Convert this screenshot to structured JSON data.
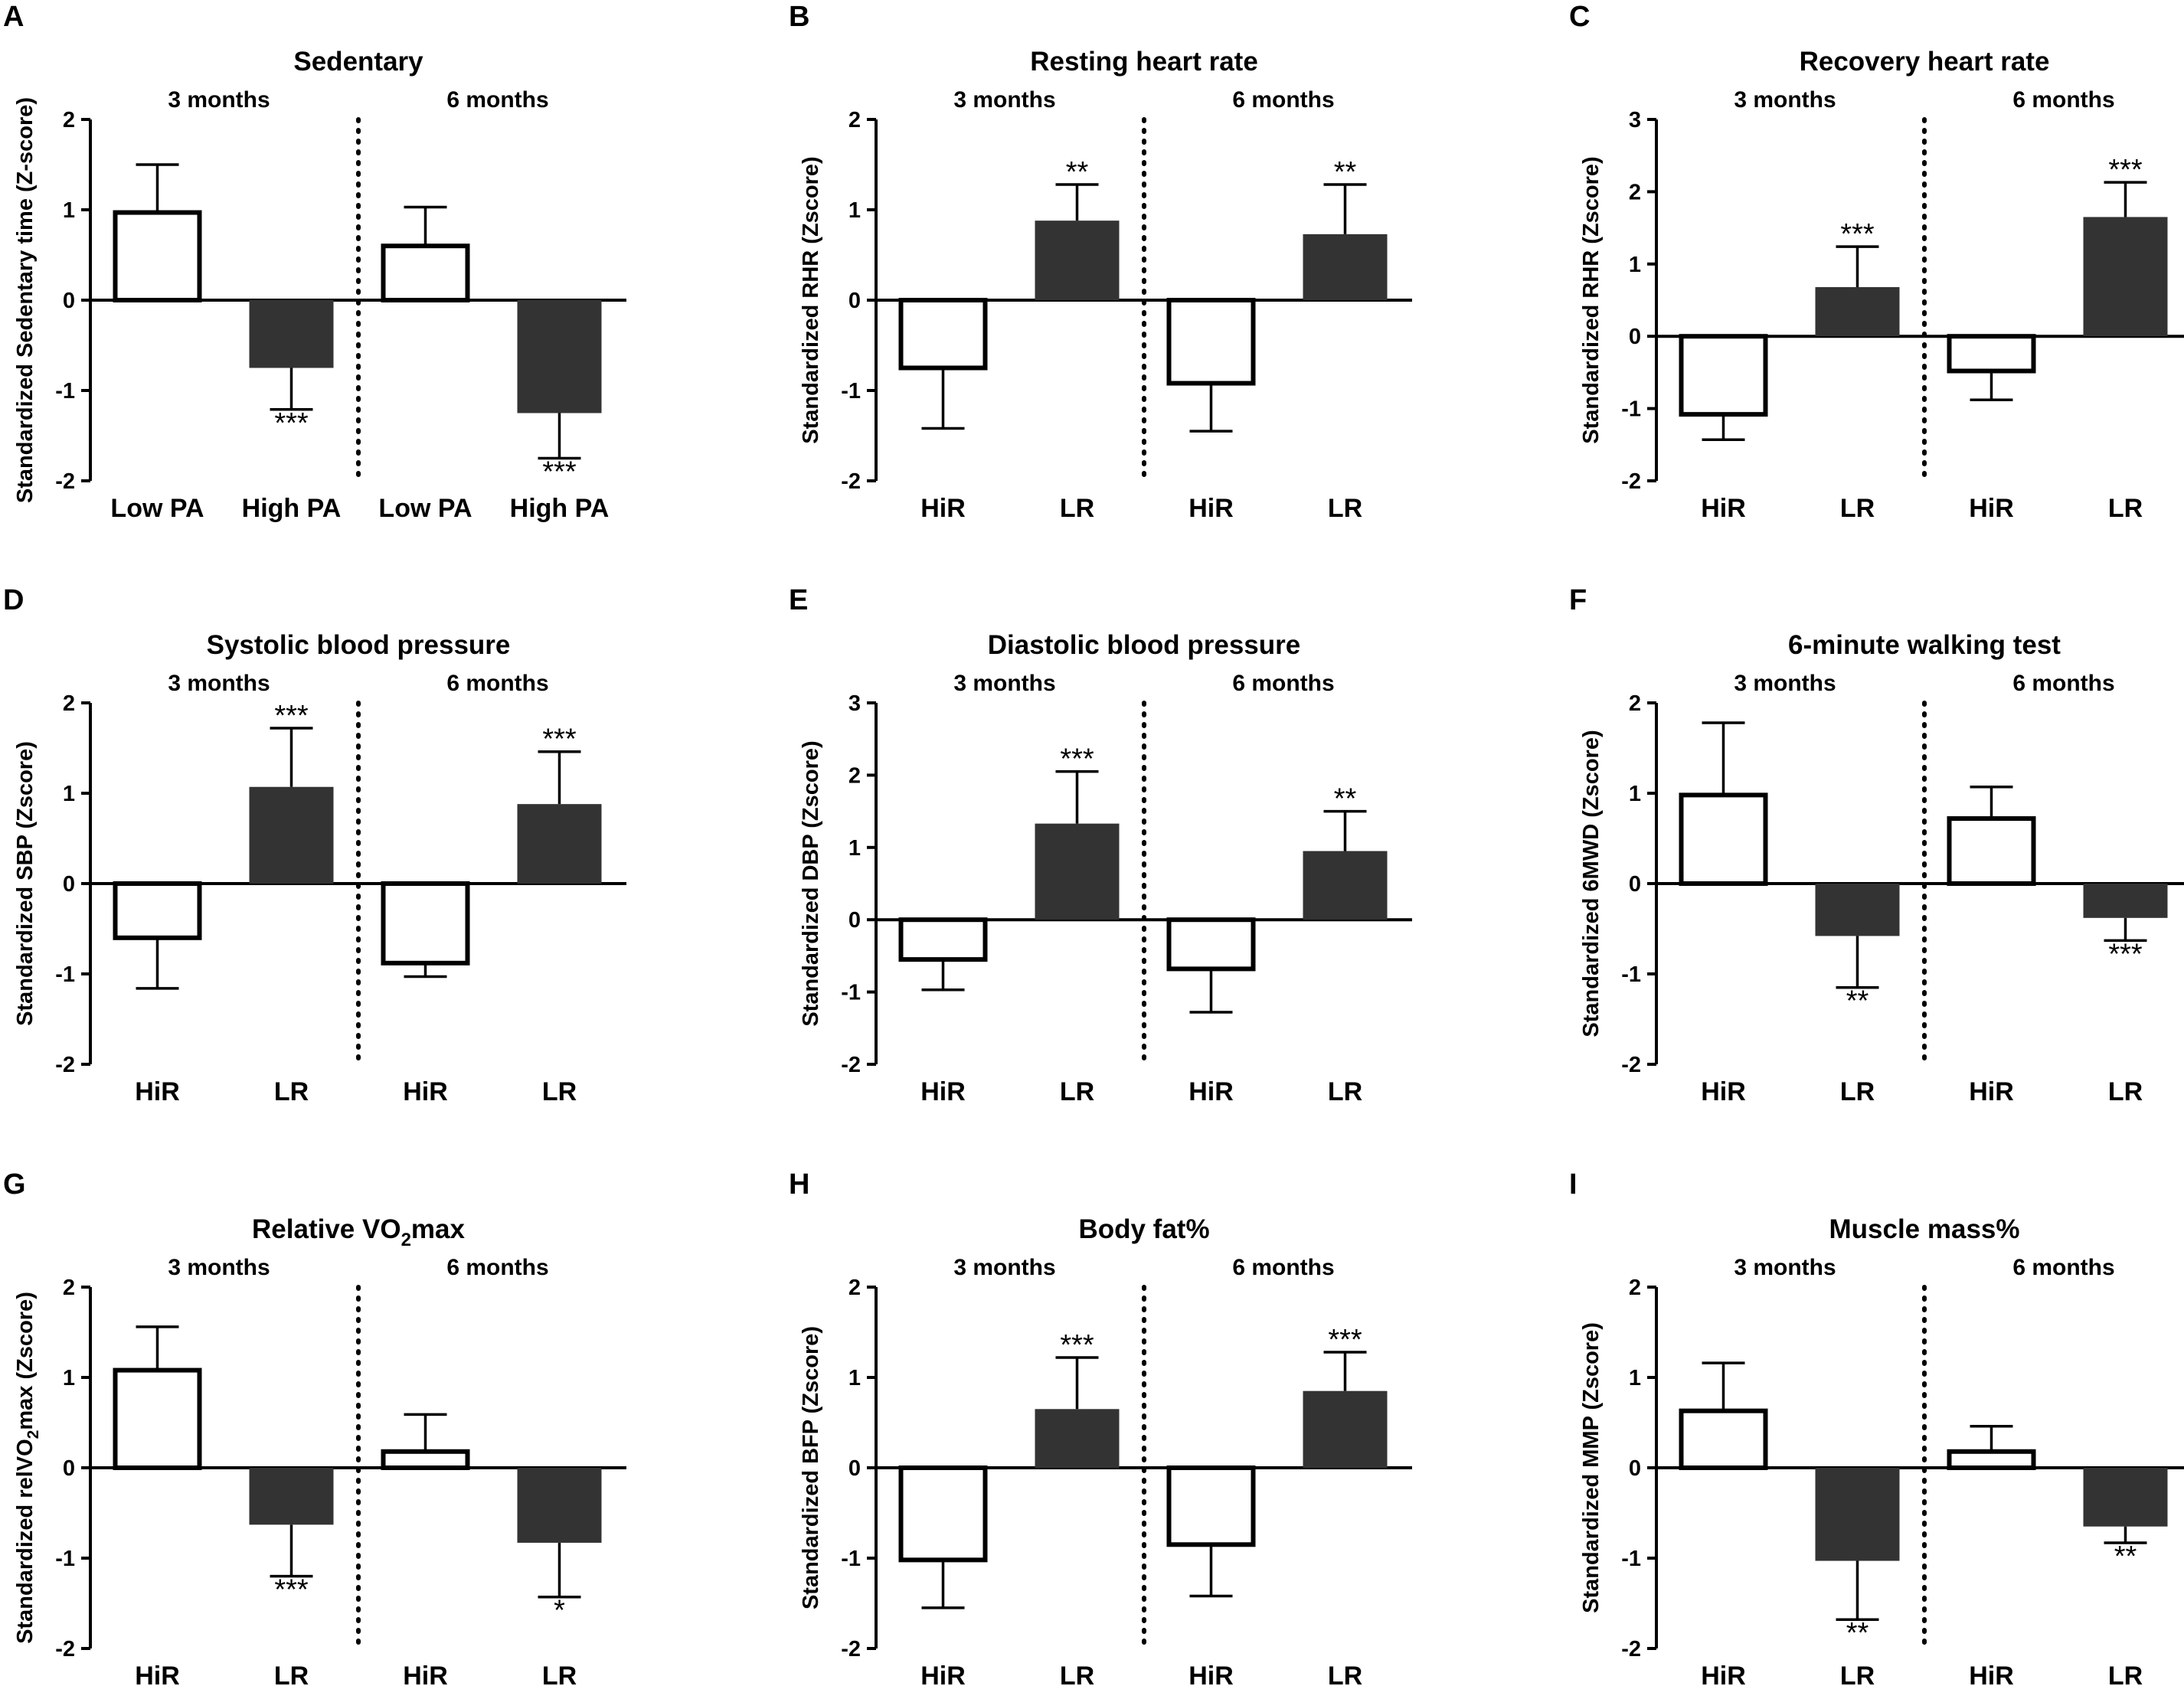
{
  "colors": {
    "open_bar": "#ffffff",
    "filled_bar": "#333333",
    "axis": "#000000"
  },
  "chart_data": [
    {
      "type": "bar",
      "panel": "A",
      "title": "Sedentary",
      "ylabel": "Standardized Sedentary time (Z-score)",
      "ylim": [
        -2,
        2
      ],
      "yticks": [
        "2",
        "1",
        "0",
        "-1",
        "-2"
      ],
      "periods": [
        "3 months",
        "6 months"
      ],
      "categories": [
        "Low PA",
        "High PA",
        "Low PA",
        "High PA"
      ],
      "fills": [
        "open",
        "filled",
        "open",
        "filled"
      ],
      "values": [
        0.97,
        -0.75,
        0.6,
        -1.25
      ],
      "errors": [
        0.53,
        0.46,
        0.43,
        0.5
      ],
      "significance": [
        "",
        "***",
        "",
        "***"
      ]
    },
    {
      "type": "bar",
      "panel": "B",
      "title": "Resting heart rate",
      "ylabel": "Standardized RHR (Zscore)",
      "ylim": [
        -2,
        2
      ],
      "yticks": [
        "2",
        "1",
        "0",
        "-1",
        "-2"
      ],
      "periods": [
        "3 months",
        "6 months"
      ],
      "categories": [
        "HiR",
        "LR",
        "HiR",
        "LR"
      ],
      "fills": [
        "open",
        "filled",
        "open",
        "filled"
      ],
      "values": [
        -0.75,
        0.88,
        -0.92,
        0.73
      ],
      "errors": [
        0.67,
        0.4,
        0.53,
        0.55
      ],
      "significance": [
        "",
        "**",
        "",
        "**"
      ]
    },
    {
      "type": "bar",
      "panel": "C",
      "title": "Recovery heart rate",
      "ylabel": "Standardized RHR (Zscore)",
      "ylim": [
        -2,
        3
      ],
      "yticks": [
        "3",
        "2",
        "1",
        "0",
        "-1",
        "-2"
      ],
      "periods": [
        "3 months",
        "6 months"
      ],
      "categories": [
        "HiR",
        "LR",
        "HiR",
        "LR"
      ],
      "fills": [
        "open",
        "filled",
        "open",
        "filled"
      ],
      "values": [
        -1.08,
        0.68,
        -0.48,
        1.65
      ],
      "errors": [
        0.35,
        0.56,
        0.4,
        0.48
      ],
      "significance": [
        "",
        "***",
        "",
        "***"
      ]
    },
    {
      "type": "bar",
      "panel": "D",
      "title": "Systolic blood pressure",
      "ylabel": "Standardized SBP (Zscore)",
      "ylim": [
        -2,
        2
      ],
      "yticks": [
        "2",
        "1",
        "0",
        "-1",
        "-2"
      ],
      "periods": [
        "3 months",
        "6 months"
      ],
      "categories": [
        "HiR",
        "LR",
        "HiR",
        "LR"
      ],
      "fills": [
        "open",
        "filled",
        "open",
        "filled"
      ],
      "values": [
        -0.6,
        1.07,
        -0.88,
        0.88
      ],
      "errors": [
        0.56,
        0.65,
        0.15,
        0.58
      ],
      "significance": [
        "",
        "***",
        "",
        "***"
      ]
    },
    {
      "type": "bar",
      "panel": "E",
      "title": "Diastolic blood pressure",
      "ylabel": "Standardized DBP (Zscore)",
      "ylim": [
        -2,
        3
      ],
      "yticks": [
        "3",
        "2",
        "1",
        "0",
        "-1",
        "-2"
      ],
      "periods": [
        "3 months",
        "6 months"
      ],
      "categories": [
        "HiR",
        "LR",
        "HiR",
        "LR"
      ],
      "fills": [
        "open",
        "filled",
        "open",
        "filled"
      ],
      "values": [
        -0.55,
        1.33,
        -0.68,
        0.95
      ],
      "errors": [
        0.42,
        0.72,
        0.6,
        0.55
      ],
      "significance": [
        "",
        "***",
        "",
        "**"
      ]
    },
    {
      "type": "bar",
      "panel": "F",
      "title": "6-minute walking test",
      "ylabel": "Standardized 6MWD (Zscore)",
      "ylim": [
        -2,
        2
      ],
      "yticks": [
        "2",
        "1",
        "0",
        "-1",
        "-2"
      ],
      "periods": [
        "3 months",
        "6 months"
      ],
      "categories": [
        "HiR",
        "LR",
        "HiR",
        "LR"
      ],
      "fills": [
        "open",
        "filled",
        "open",
        "filled"
      ],
      "values": [
        0.98,
        -0.58,
        0.72,
        -0.38
      ],
      "errors": [
        0.8,
        0.57,
        0.35,
        0.25
      ],
      "significance": [
        "",
        "**",
        "",
        "***"
      ]
    },
    {
      "type": "bar",
      "panel": "G",
      "title": "Relative VO2max",
      "ylabel": "Standardized relVO2max (Zscore)",
      "ylim": [
        -2,
        2
      ],
      "yticks": [
        "2",
        "1",
        "0",
        "-1",
        "-2"
      ],
      "periods": [
        "3 months",
        "6 months"
      ],
      "categories": [
        "HiR",
        "LR",
        "HiR",
        "LR"
      ],
      "fills": [
        "open",
        "filled",
        "open",
        "filled"
      ],
      "values": [
        1.08,
        -0.63,
        0.18,
        -0.83
      ],
      "errors": [
        0.48,
        0.57,
        0.41,
        0.6
      ],
      "significance": [
        "",
        "***",
        "",
        "*"
      ]
    },
    {
      "type": "bar",
      "panel": "H",
      "title": "Body fat%",
      "ylabel": "Standardized BFP (Zscore)",
      "ylim": [
        -2,
        2
      ],
      "yticks": [
        "2",
        "1",
        "0",
        "-1",
        "-2"
      ],
      "periods": [
        "3 months",
        "6 months"
      ],
      "categories": [
        "HiR",
        "LR",
        "HiR",
        "LR"
      ],
      "fills": [
        "open",
        "filled",
        "open",
        "filled"
      ],
      "values": [
        -1.02,
        0.65,
        -0.85,
        0.85
      ],
      "errors": [
        0.53,
        0.57,
        0.57,
        0.43
      ],
      "significance": [
        "",
        "***",
        "",
        "***"
      ]
    },
    {
      "type": "bar",
      "panel": "I",
      "title": "Muscle mass%",
      "ylabel": "Standardized MMP (Zscore)",
      "ylim": [
        -2,
        2
      ],
      "yticks": [
        "2",
        "1",
        "0",
        "-1",
        "-2"
      ],
      "periods": [
        "3 months",
        "6 months"
      ],
      "categories": [
        "HiR",
        "LR",
        "HiR",
        "LR"
      ],
      "fills": [
        "open",
        "filled",
        "open",
        "filled"
      ],
      "values": [
        0.63,
        -1.03,
        0.18,
        -0.65
      ],
      "errors": [
        0.53,
        0.65,
        0.28,
        0.18
      ],
      "significance": [
        "",
        "**",
        "",
        "**"
      ]
    }
  ]
}
